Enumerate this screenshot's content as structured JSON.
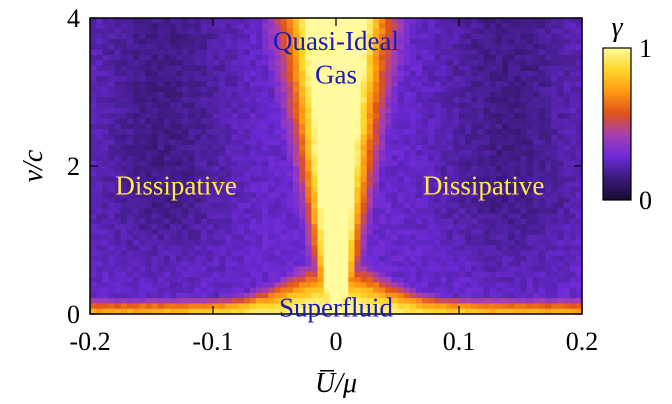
{
  "chart_data": {
    "type": "heatmap",
    "title": "",
    "xlabel": "U̅/μ",
    "ylabel": "v/c",
    "xlim": [
      -0.2,
      0.2
    ],
    "ylim": [
      0,
      4
    ],
    "x_ticks": [
      "-0.2",
      "-0.1",
      "0",
      "0.1",
      "0.2"
    ],
    "y_ticks": [
      "0",
      "2",
      "4"
    ],
    "colorbar": {
      "label": "γ",
      "range": [
        0,
        1
      ],
      "ticks": [
        "0",
        "1"
      ]
    },
    "colormap": [
      "#1a0a33",
      "#3a1a7a",
      "#6d2ad8",
      "#a63fb0",
      "#e0531a",
      "#ff9a12",
      "#ffd72a",
      "#fffb9e"
    ],
    "annotations": [
      {
        "text": "Quasi-Ideal",
        "x": 0.0,
        "y": 3.7,
        "color": "#1a1ab8"
      },
      {
        "text": "Gas",
        "x": 0.0,
        "y": 3.25,
        "color": "#1a1ab8"
      },
      {
        "text": "Dissipative",
        "x": -0.13,
        "y": 1.75,
        "color": "#ffe84a"
      },
      {
        "text": "Dissipative",
        "x": 0.12,
        "y": 1.75,
        "color": "#ffe84a"
      },
      {
        "text": "Superfluid",
        "x": 0.0,
        "y": 0.1,
        "color": "#1a1ab8"
      }
    ],
    "model": {
      "description_free": true,
      "core_halfwidth_at_top": 0.025,
      "core_halfwidth_at_bottom": 0.006,
      "superfluid_band_v": 0.12,
      "background_gamma": 0.25,
      "grid_nx": 80,
      "grid_ny": 56
    }
  }
}
